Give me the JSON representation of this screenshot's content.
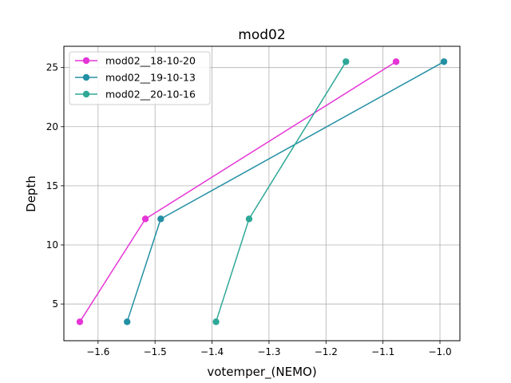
{
  "chart_data": {
    "type": "line",
    "title": "mod02",
    "xlabel": "votemper_(NEMO)",
    "ylabel": "Depth",
    "xlim": [
      -1.66,
      -0.965
    ],
    "ylim": [
      1.9,
      26.8
    ],
    "xticks": [
      -1.6,
      -1.5,
      -1.4,
      -1.3,
      -1.2,
      -1.1,
      -1.0
    ],
    "xtick_labels": [
      "−1.6",
      "−1.5",
      "−1.4",
      "−1.3",
      "−1.2",
      "−1.1",
      "−1.0"
    ],
    "yticks": [
      5,
      10,
      15,
      20,
      25
    ],
    "ytick_labels": [
      "5",
      "10",
      "15",
      "20",
      "25"
    ],
    "grid": true,
    "legend_position": "top-left",
    "series": [
      {
        "name": "mod02__18-10-20",
        "color": "#e535d6",
        "x": [
          -1.632,
          -1.517,
          -1.077
        ],
        "y": [
          3.5,
          12.2,
          25.5
        ]
      },
      {
        "name": "mod02__19-10-13",
        "color": "#2390a4",
        "x": [
          -1.549,
          -1.49,
          -0.993
        ],
        "y": [
          3.5,
          12.2,
          25.5
        ]
      },
      {
        "name": "mod02__20-10-16",
        "color": "#2ea897",
        "x": [
          -1.393,
          -1.335,
          -1.165
        ],
        "y": [
          3.5,
          12.2,
          25.5
        ]
      }
    ]
  }
}
